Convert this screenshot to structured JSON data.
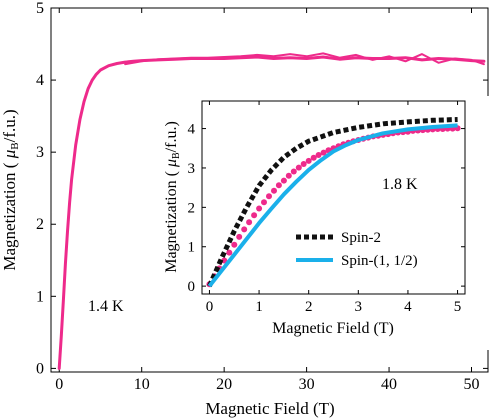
{
  "chart_data": [
    {
      "type": "line",
      "xlabel": "Magnetic Field  (T)",
      "ylabel_prefix": "Magnetization ( ",
      "ylabel_mu": "μ",
      "ylabel_sub": "B",
      "ylabel_suffix": "/f.u.)",
      "xlim": [
        -1,
        52
      ],
      "ylim": [
        -0.05,
        5
      ],
      "xticks": [
        "0",
        "10",
        "20",
        "30",
        "40",
        "50"
      ],
      "xtick_values": [
        0,
        10,
        20,
        30,
        40,
        50
      ],
      "yticks": [
        "0",
        "1",
        "2",
        "3",
        "4",
        "5"
      ],
      "ytick_values": [
        0,
        1,
        2,
        3,
        4,
        5
      ],
      "annotation": "1.4 K",
      "colors": {
        "series": "#ee2a8b",
        "axis": "#000000"
      },
      "series": [
        {
          "x": [
            0,
            0.25,
            0.5,
            0.75,
            1,
            1.25,
            1.5,
            2,
            2.5,
            3,
            3.5,
            4,
            4.5,
            5,
            6,
            7,
            8,
            9,
            10,
            12,
            14,
            16,
            18,
            20,
            22,
            24,
            26,
            28,
            30,
            32,
            34,
            36,
            38,
            40,
            42,
            44,
            46,
            48,
            50,
            51.5
          ],
          "y": [
            0,
            0.45,
            0.95,
            1.45,
            1.9,
            2.3,
            2.62,
            3.1,
            3.45,
            3.7,
            3.88,
            4.0,
            4.08,
            4.14,
            4.2,
            4.23,
            4.25,
            4.26,
            4.27,
            4.28,
            4.29,
            4.3,
            4.3,
            4.3,
            4.31,
            4.32,
            4.3,
            4.31,
            4.3,
            4.32,
            4.29,
            4.31,
            4.3,
            4.3,
            4.31,
            4.28,
            4.3,
            4.29,
            4.27,
            4.26
          ]
        },
        {
          "x": [
            8,
            10,
            12,
            14,
            16,
            18,
            20,
            22,
            24,
            26,
            28,
            30,
            32,
            34,
            36,
            38,
            40,
            42,
            44,
            46,
            48,
            50,
            51.5
          ],
          "y": [
            4.22,
            4.26,
            4.29,
            4.3,
            4.31,
            4.31,
            4.32,
            4.33,
            4.35,
            4.33,
            4.36,
            4.33,
            4.37,
            4.31,
            4.35,
            4.28,
            4.33,
            4.26,
            4.36,
            4.24,
            4.3,
            4.28,
            4.22
          ]
        }
      ]
    },
    {
      "type": "line",
      "inset": true,
      "xlabel": "Magnetic Field (T)",
      "ylabel_prefix": "Magnetization ( ",
      "ylabel_mu": "μ",
      "ylabel_sub": "B",
      "ylabel_suffix": "/f.u.)",
      "xlim": [
        -0.15,
        5.15
      ],
      "ylim": [
        -0.2,
        4.7
      ],
      "xticks": [
        "0",
        "1",
        "2",
        "3",
        "4",
        "5"
      ],
      "xtick_values": [
        0,
        1,
        2,
        3,
        4,
        5
      ],
      "yticks": [
        "0",
        "1",
        "2",
        "3",
        "4"
      ],
      "ytick_values": [
        0,
        1,
        2,
        3,
        4
      ],
      "annotation": "1.8 K",
      "colors": {
        "experiment": "#ee2a8b",
        "spin2": "#111111",
        "spin_mixed": "#1ab0ea"
      },
      "experiment": {
        "x": [
          0.0,
          0.1,
          0.2,
          0.3,
          0.4,
          0.5,
          0.6,
          0.7,
          0.8,
          0.9,
          1.0,
          1.1,
          1.2,
          1.3,
          1.4,
          1.5,
          1.6,
          1.7,
          1.8,
          1.9,
          2.0,
          2.1,
          2.2,
          2.3,
          2.4,
          2.5,
          2.6,
          2.7,
          2.8,
          2.9,
          3.0,
          3.1,
          3.2,
          3.3,
          3.4,
          3.5,
          3.6,
          3.7,
          3.8,
          3.9,
          4.0,
          4.1,
          4.2,
          4.3,
          4.4,
          4.5,
          4.6,
          4.7,
          4.8,
          4.9,
          5.0
        ],
        "y": [
          0.05,
          0.25,
          0.45,
          0.65,
          0.85,
          1.05,
          1.25,
          1.44,
          1.62,
          1.8,
          1.97,
          2.13,
          2.28,
          2.42,
          2.56,
          2.68,
          2.8,
          2.91,
          3.01,
          3.1,
          3.18,
          3.26,
          3.33,
          3.39,
          3.45,
          3.5,
          3.55,
          3.6,
          3.64,
          3.68,
          3.71,
          3.74,
          3.77,
          3.8,
          3.82,
          3.84,
          3.86,
          3.88,
          3.9,
          3.91,
          3.92,
          3.94,
          3.95,
          3.96,
          3.97,
          3.98,
          3.99,
          3.99,
          4.0,
          4.0,
          4.01
        ]
      },
      "series": [
        {
          "name": "Spin-2",
          "style": "dotted",
          "x": [
            0,
            0.25,
            0.5,
            0.75,
            1.0,
            1.25,
            1.5,
            1.75,
            2.0,
            2.5,
            3.0,
            3.5,
            4.0,
            4.5,
            5.0
          ],
          "y": [
            0.0,
            0.72,
            1.4,
            2.0,
            2.55,
            2.95,
            3.27,
            3.5,
            3.68,
            3.9,
            4.03,
            4.12,
            4.17,
            4.21,
            4.23
          ]
        },
        {
          "name": "Spin-(1, 1/2)",
          "style": "solid",
          "x": [
            0,
            0.25,
            0.5,
            0.75,
            1.0,
            1.25,
            1.5,
            1.75,
            2.0,
            2.25,
            2.5,
            2.75,
            3.0,
            3.5,
            4.0,
            4.5,
            5.0
          ],
          "y": [
            0.0,
            0.4,
            0.8,
            1.2,
            1.6,
            1.97,
            2.33,
            2.65,
            2.95,
            3.2,
            3.42,
            3.58,
            3.71,
            3.88,
            3.98,
            4.04,
            4.08
          ]
        }
      ]
    }
  ]
}
